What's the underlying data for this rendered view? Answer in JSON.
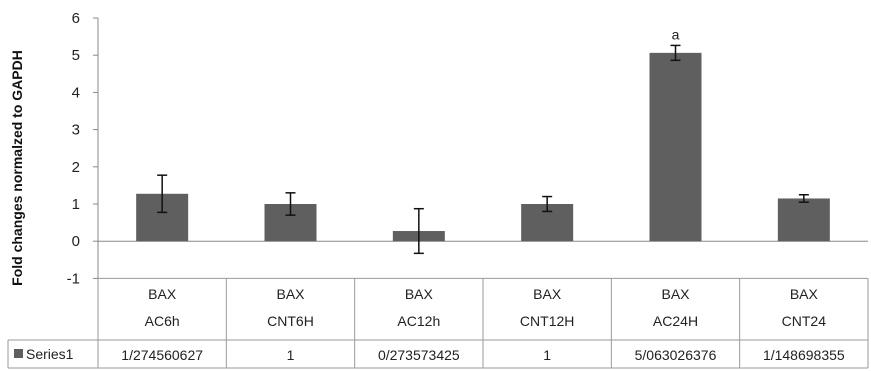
{
  "chart_data": {
    "type": "bar",
    "ylabel": "Fold changes normalzed to GAPDH",
    "ylim": [
      -1,
      6
    ],
    "yticks": [
      -1,
      0,
      1,
      2,
      3,
      4,
      5,
      6
    ],
    "grid": false,
    "legend": "bottom-left (in data table)",
    "categories": [
      {
        "line1": "BAX",
        "line2": "AC6h"
      },
      {
        "line1": "BAX",
        "line2": "CNT6H"
      },
      {
        "line1": "BAX",
        "line2": "AC12h"
      },
      {
        "line1": "BAX",
        "line2": "CNT12H"
      },
      {
        "line1": "BAX",
        "line2": "AC24H"
      },
      {
        "line1": "BAX",
        "line2": "CNT24"
      }
    ],
    "series": [
      {
        "name": "Series1",
        "color": "#5f5f5f",
        "values": [
          1.274560627,
          1,
          0.273573425,
          1,
          5.063026376,
          1.148698355
        ],
        "error": [
          0.5,
          0.3,
          0.6,
          0.2,
          0.2,
          0.1
        ],
        "table_labels": [
          "1/274560627",
          "1",
          "0/273573425",
          "1",
          "5/063026376",
          "1/148698355"
        ]
      }
    ],
    "annotations": [
      {
        "category_index": 4,
        "text": "a"
      }
    ]
  }
}
